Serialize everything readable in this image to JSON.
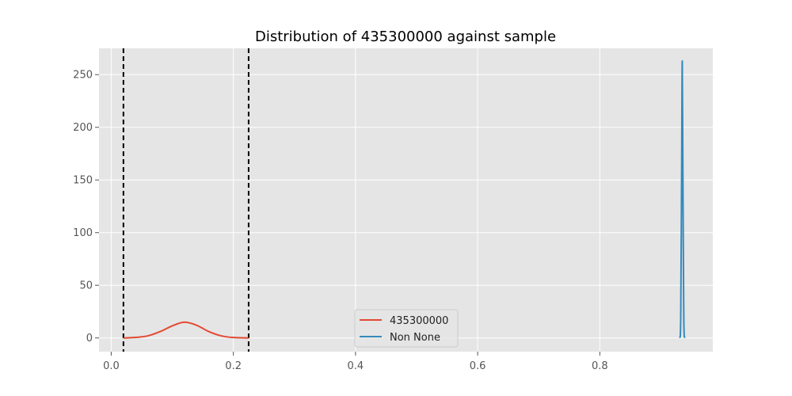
{
  "chart_data": {
    "type": "line",
    "title": "Distribution of 435300000 against sample",
    "xlabel": "",
    "ylabel": "",
    "xlim": [
      -0.02,
      0.985
    ],
    "ylim": [
      -13,
      275
    ],
    "x_ticks": [
      0.0,
      0.2,
      0.4,
      0.6,
      0.8
    ],
    "x_tick_labels": [
      "0.0",
      "0.2",
      "0.4",
      "0.6",
      "0.8"
    ],
    "y_ticks": [
      0,
      50,
      100,
      150,
      200,
      250
    ],
    "y_tick_labels": [
      "0",
      "50",
      "100",
      "150",
      "200",
      "250"
    ],
    "grid": true,
    "legend_placement": "lower center",
    "series": [
      {
        "name": "435300000",
        "color": "#E24A33",
        "x": [
          0.02,
          0.04,
          0.06,
          0.08,
          0.1,
          0.12,
          0.14,
          0.16,
          0.18,
          0.2,
          0.225
        ],
        "y": [
          0.0,
          0.5,
          2.0,
          6.0,
          11.5,
          15.0,
          12.0,
          6.0,
          2.0,
          0.4,
          0.0
        ]
      },
      {
        "name": "Non None",
        "color": "#348ABD",
        "x": [
          0.931,
          0.9325,
          0.934,
          0.935,
          0.936,
          0.9375,
          0.939
        ],
        "y": [
          0,
          20,
          160,
          263,
          160,
          20,
          0
        ]
      }
    ],
    "vertical_lines": [
      {
        "x": 0.02,
        "style": "dashed",
        "color": "#000000"
      },
      {
        "x": 0.225,
        "style": "dashed",
        "color": "#000000"
      }
    ]
  }
}
